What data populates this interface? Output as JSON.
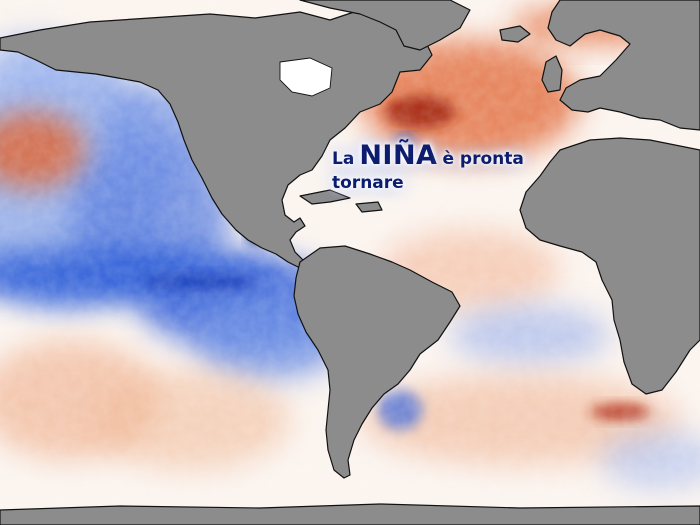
{
  "caption": {
    "prefix": "La",
    "emphasis": "NIÑA",
    "suffix": "è pronta",
    "line2": "tornare"
  },
  "map": {
    "type": "sea-surface-temperature-anomaly",
    "land_color": "#8c8c8c",
    "coastline_color": "#111111",
    "cool_anomaly_color": "#2f5fd8",
    "strong_cool_color": "#0b2a9e",
    "warm_anomaly_color": "#e0622f",
    "strong_warm_color": "#a0200a",
    "neutral_color": "#ffffff",
    "text_color": "#0c1c6e"
  }
}
